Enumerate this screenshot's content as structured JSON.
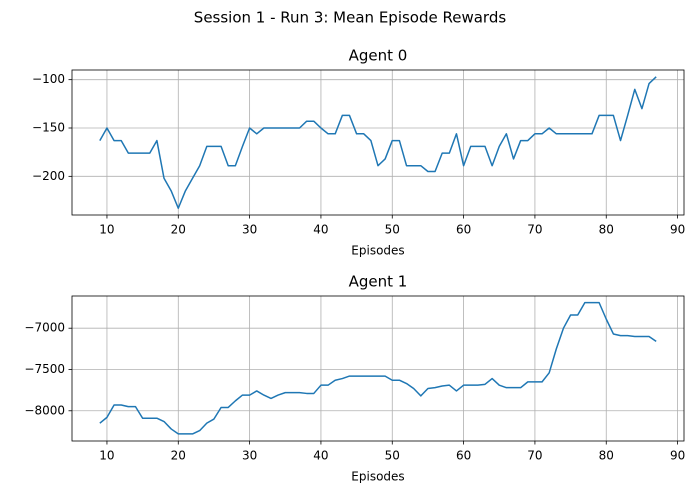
{
  "title": "Session 1 - Run 3: Mean Episode Rewards",
  "chart_data": [
    {
      "type": "line",
      "title": "Agent 0",
      "xlabel": "Episodes",
      "color": "#1f77b4",
      "grid": true,
      "x": [
        9,
        10,
        11,
        12,
        13,
        14,
        15,
        16,
        17,
        18,
        19,
        20,
        21,
        22,
        23,
        24,
        25,
        26,
        27,
        28,
        29,
        30,
        31,
        32,
        33,
        34,
        35,
        36,
        37,
        38,
        39,
        40,
        41,
        42,
        43,
        44,
        45,
        46,
        47,
        48,
        49,
        50,
        51,
        52,
        53,
        54,
        55,
        56,
        57,
        58,
        59,
        60,
        61,
        62,
        63,
        64,
        65,
        66,
        67,
        68,
        69,
        70,
        71,
        72,
        73,
        74,
        75,
        76,
        77,
        78,
        79,
        80,
        81,
        82,
        83,
        84,
        85,
        86,
        87
      ],
      "values": [
        -163,
        -150,
        -163,
        -163,
        -176,
        -176,
        -176,
        -176,
        -163,
        -202,
        -215,
        -233,
        -215,
        -202,
        -189,
        -169,
        -169,
        -169,
        -189,
        -189,
        -169,
        -150,
        -156,
        -150,
        -150,
        -150,
        -150,
        -150,
        -150,
        -143,
        -143,
        -150,
        -156,
        -156,
        -137,
        -137,
        -156,
        -156,
        -163,
        -189,
        -182,
        -163,
        -163,
        -189,
        -189,
        -189,
        -195,
        -195,
        -176,
        -176,
        -156,
        -189,
        -169,
        -169,
        -169,
        -189,
        -169,
        -156,
        -182,
        -163,
        -163,
        -156,
        -156,
        -150,
        -156,
        -156,
        -156,
        -156,
        -156,
        -156,
        -137,
        -137,
        -137,
        -163,
        -137,
        -110,
        -130,
        -104,
        -97
      ],
      "xlim": [
        5.1,
        90.9
      ],
      "ylim": [
        -240,
        -90
      ],
      "xticks": [
        10,
        20,
        30,
        40,
        50,
        60,
        70,
        80,
        90
      ],
      "yticks": [
        {
          "value": -200,
          "label": "−200"
        },
        {
          "value": -150,
          "label": "−150"
        },
        {
          "value": -100,
          "label": "−100"
        }
      ]
    },
    {
      "type": "line",
      "title": "Agent 1",
      "xlabel": "Episodes",
      "color": "#1f77b4",
      "grid": true,
      "x": [
        9,
        10,
        11,
        12,
        13,
        14,
        15,
        16,
        17,
        18,
        19,
        20,
        21,
        22,
        23,
        24,
        25,
        26,
        27,
        28,
        29,
        30,
        31,
        32,
        33,
        34,
        35,
        36,
        37,
        38,
        39,
        40,
        41,
        42,
        43,
        44,
        45,
        46,
        47,
        48,
        49,
        50,
        51,
        52,
        53,
        54,
        55,
        56,
        57,
        58,
        59,
        60,
        61,
        62,
        63,
        64,
        65,
        66,
        67,
        68,
        69,
        70,
        71,
        72,
        73,
        74,
        75,
        76,
        77,
        78,
        79,
        80,
        81,
        82,
        83,
        84,
        85,
        86,
        87
      ],
      "values": [
        -8150,
        -8080,
        -7930,
        -7930,
        -7950,
        -7950,
        -8090,
        -8090,
        -8090,
        -8130,
        -8220,
        -8280,
        -8280,
        -8280,
        -8240,
        -8150,
        -8100,
        -7960,
        -7960,
        -7880,
        -7810,
        -7810,
        -7760,
        -7810,
        -7850,
        -7810,
        -7780,
        -7780,
        -7780,
        -7790,
        -7790,
        -7690,
        -7690,
        -7630,
        -7610,
        -7580,
        -7580,
        -7580,
        -7580,
        -7580,
        -7580,
        -7630,
        -7630,
        -7670,
        -7730,
        -7820,
        -7730,
        -7720,
        -7700,
        -7690,
        -7760,
        -7690,
        -7690,
        -7690,
        -7680,
        -7610,
        -7690,
        -7720,
        -7720,
        -7720,
        -7650,
        -7650,
        -7650,
        -7540,
        -7250,
        -7000,
        -6840,
        -6840,
        -6690,
        -6690,
        -6690,
        -6890,
        -7070,
        -7090,
        -7090,
        -7100,
        -7100,
        -7100,
        -7160
      ],
      "xlim": [
        5.1,
        90.9
      ],
      "ylim": [
        -8366,
        -6610
      ],
      "xticks": [
        10,
        20,
        30,
        40,
        50,
        60,
        70,
        80,
        90
      ],
      "yticks": [
        {
          "value": -8000,
          "label": "−8000"
        },
        {
          "value": -7500,
          "label": "−7500"
        },
        {
          "value": -7000,
          "label": "−7000"
        }
      ]
    }
  ]
}
